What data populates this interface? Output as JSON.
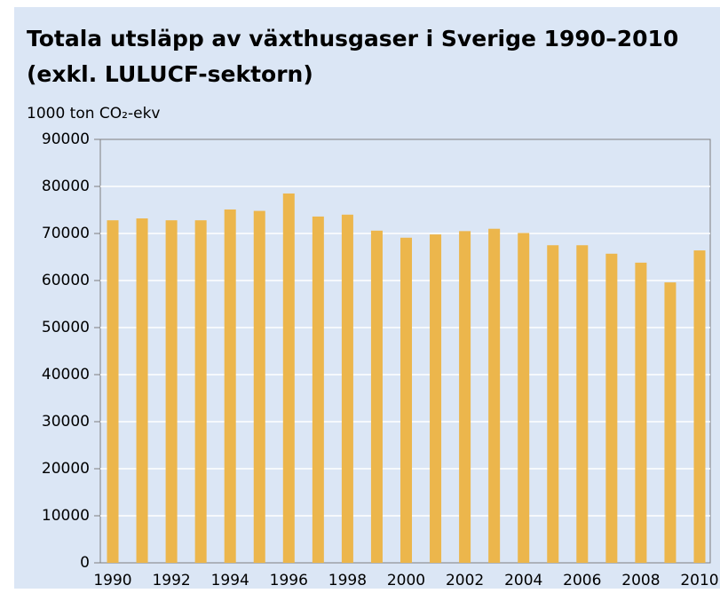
{
  "chart_data": {
    "type": "bar",
    "title": [
      "Totala utsläpp av växthusgaser i Sverige 1990–2010",
      "(exkl. LULUCF-sektorn)"
    ],
    "subtitle": "1000 ton CO₂-ekv",
    "categories": [
      "1990",
      null,
      "1992",
      null,
      "1994",
      null,
      "1996",
      null,
      "1998",
      null,
      "2000",
      null,
      "2002",
      null,
      "2004",
      null,
      "2006",
      null,
      "2008",
      null,
      "2010"
    ],
    "values": [
      72800,
      73200,
      72800,
      72800,
      75100,
      74800,
      78500,
      73600,
      74000,
      70600,
      69100,
      69800,
      70500,
      71000,
      70100,
      67500,
      67500,
      65700,
      63800,
      59600,
      66400
    ],
    "color": "#ecb64c",
    "ylim": [
      0,
      90000
    ],
    "yticks": [
      0,
      10000,
      20000,
      30000,
      40000,
      50000,
      60000,
      70000,
      80000,
      90000
    ],
    "grid": true
  }
}
